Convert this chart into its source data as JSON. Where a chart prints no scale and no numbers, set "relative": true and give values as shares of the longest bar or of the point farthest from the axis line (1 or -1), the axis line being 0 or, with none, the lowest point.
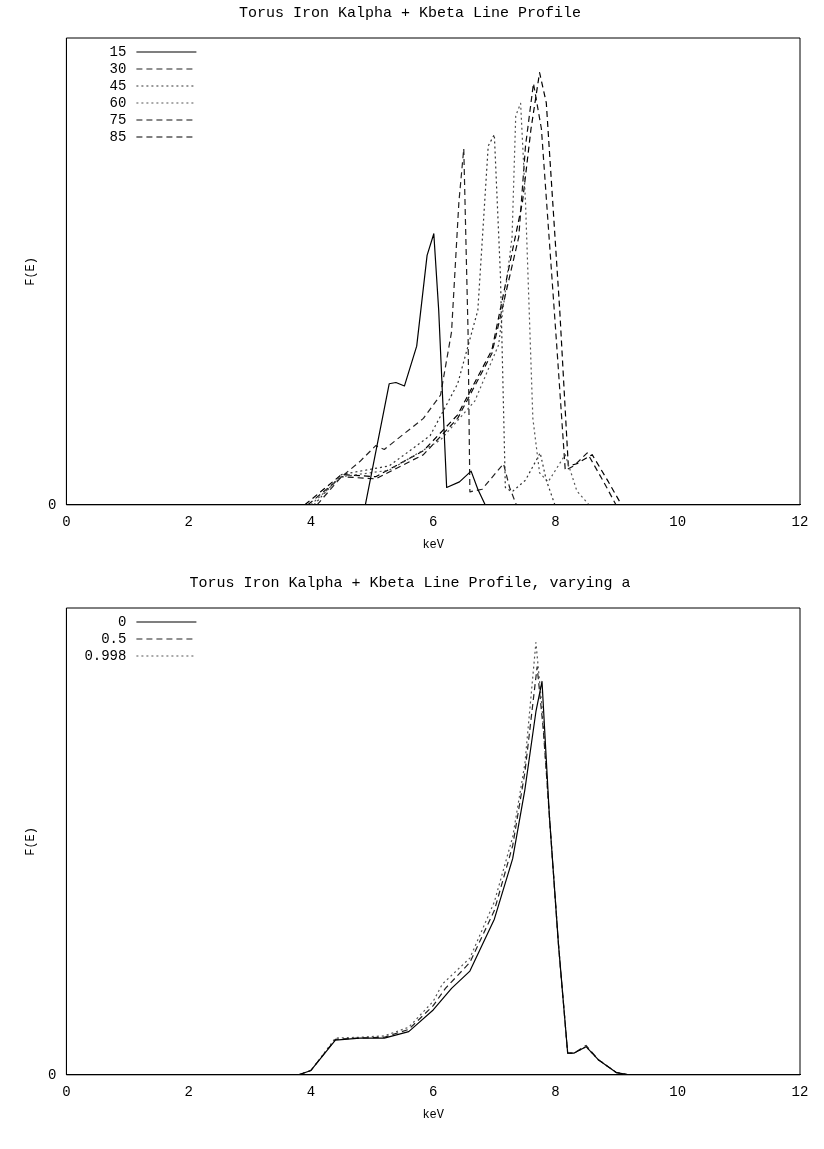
{
  "chart_data": [
    {
      "type": "line",
      "title": "Torus Iron Kalpha + Kbeta Line Profile",
      "xlabel": "keV",
      "ylabel": "F(E)",
      "relative": true,
      "xlim": [
        0,
        12
      ],
      "xticks": [
        0,
        2,
        4,
        6,
        8,
        10,
        12
      ],
      "legend": "top left",
      "annotations": [
        "0"
      ],
      "series": [
        {
          "name": "15",
          "color": "#000000",
          "line_style": "solid",
          "x": [
            4.89,
            5.28,
            5.39,
            5.53,
            5.73,
            5.9,
            6.01,
            6.09,
            6.22,
            6.43,
            6.62,
            6.73,
            6.85
          ],
          "values": [
            0,
            0.28,
            0.283,
            0.275,
            0.367,
            0.577,
            0.627,
            0.45,
            0.04,
            0.053,
            0.078,
            0.036,
            0
          ]
        },
        {
          "name": "30",
          "color": "#222222",
          "line_style": "dashed",
          "x": [
            4.1,
            4.5,
            4.8,
            5.06,
            5.2,
            5.84,
            6.12,
            6.3,
            6.42,
            6.5,
            6.57,
            6.6,
            6.8,
            7.15,
            7.25,
            7.36
          ],
          "values": [
            0,
            0.065,
            0.1,
            0.137,
            0.128,
            0.2,
            0.254,
            0.4,
            0.7,
            0.824,
            0.4,
            0.03,
            0.036,
            0.095,
            0.04,
            0
          ]
        },
        {
          "name": "45",
          "color": "#333333",
          "line_style": "dotted",
          "x": [
            4.05,
            4.5,
            5.28,
            5.95,
            6.4,
            6.73,
            6.9,
            7.0,
            7.1,
            7.18,
            7.29,
            7.51,
            7.75,
            7.85,
            7.99
          ],
          "values": [
            0,
            0.07,
            0.09,
            0.16,
            0.28,
            0.45,
            0.83,
            0.857,
            0.53,
            0.04,
            0.03,
            0.057,
            0.12,
            0.057,
            0
          ]
        },
        {
          "name": "60",
          "color": "#555555",
          "line_style": "dotted",
          "x": [
            4.0,
            4.5,
            5.28,
            6.12,
            6.68,
            7.07,
            7.29,
            7.35,
            7.43,
            7.51,
            7.63,
            7.74,
            7.88,
            8.16,
            8.35,
            8.55
          ],
          "values": [
            0,
            0.065,
            0.08,
            0.15,
            0.24,
            0.37,
            0.62,
            0.9,
            0.929,
            0.7,
            0.2,
            0.074,
            0.053,
            0.116,
            0.032,
            0
          ]
        },
        {
          "name": "75",
          "color": "#111111",
          "line_style": "dashed",
          "x": [
            3.95,
            4.5,
            5.06,
            5.84,
            6.4,
            6.96,
            7.4,
            7.51,
            7.64,
            7.77,
            8.02,
            8.16,
            8.3,
            8.52,
            8.8,
            8.99
          ],
          "values": [
            0,
            0.065,
            0.06,
            0.116,
            0.2,
            0.35,
            0.62,
            0.83,
            0.975,
            0.87,
            0.37,
            0.08,
            0.09,
            0.12,
            0.05,
            0
          ]
        },
        {
          "name": "85",
          "color": "#000000",
          "line_style": "dashed",
          "x": [
            3.9,
            4.5,
            5.06,
            5.84,
            6.4,
            6.96,
            7.46,
            7.6,
            7.74,
            7.85,
            8.07,
            8.21,
            8.35,
            8.6,
            8.85,
            9.08
          ],
          "values": [
            0,
            0.07,
            0.065,
            0.125,
            0.208,
            0.358,
            0.7,
            0.87,
            1.0,
            0.93,
            0.45,
            0.09,
            0.095,
            0.116,
            0.057,
            0
          ]
        }
      ]
    },
    {
      "type": "line",
      "title": "Torus Iron Kalpha + Kbeta Line Profile, varying a",
      "xlabel": "keV",
      "ylabel": "F(E)",
      "relative": true,
      "xlim": [
        0,
        12
      ],
      "xticks": [
        0,
        2,
        4,
        6,
        8,
        10,
        12
      ],
      "legend": "top left",
      "annotations": [
        "0"
      ],
      "series": [
        {
          "name": "0",
          "color": "#000000",
          "line_style": "solid",
          "x": [
            3.8,
            4.0,
            4.4,
            4.8,
            5.2,
            5.6,
            6.0,
            6.3,
            6.6,
            7.0,
            7.3,
            7.5,
            7.68,
            7.78,
            7.9,
            8.05,
            8.2,
            8.3,
            8.5,
            8.7,
            9.0,
            9.2
          ],
          "values": [
            0,
            0.01,
            0.08,
            0.085,
            0.085,
            0.1,
            0.15,
            0.2,
            0.24,
            0.36,
            0.5,
            0.66,
            0.84,
            0.91,
            0.6,
            0.3,
            0.05,
            0.05,
            0.065,
            0.035,
            0.005,
            0
          ]
        },
        {
          "name": "0.5",
          "color": "#222222",
          "line_style": "dashed",
          "x": [
            3.8,
            4.0,
            4.4,
            4.8,
            5.2,
            5.6,
            6.0,
            6.2,
            6.6,
            7.0,
            7.3,
            7.5,
            7.7,
            7.8,
            7.9,
            8.05,
            8.2,
            8.3,
            8.5,
            8.7,
            9.0,
            9.2
          ],
          "values": [
            0,
            0.01,
            0.082,
            0.085,
            0.087,
            0.105,
            0.16,
            0.2,
            0.26,
            0.38,
            0.53,
            0.7,
            0.944,
            0.8,
            0.6,
            0.3,
            0.05,
            0.05,
            0.068,
            0.035,
            0.005,
            0
          ]
        },
        {
          "name": "0.998",
          "color": "#555555",
          "line_style": "dotted",
          "x": [
            3.8,
            4.0,
            4.4,
            4.8,
            5.2,
            5.6,
            6.0,
            6.15,
            6.6,
            7.0,
            7.3,
            7.5,
            7.68,
            7.78,
            7.9,
            8.05,
            8.2,
            8.3,
            8.5,
            8.7,
            9.0,
            9.2
          ],
          "values": [
            0,
            0.01,
            0.085,
            0.087,
            0.09,
            0.11,
            0.17,
            0.21,
            0.27,
            0.4,
            0.55,
            0.72,
            1.0,
            0.85,
            0.6,
            0.3,
            0.05,
            0.05,
            0.065,
            0.035,
            0.005,
            0
          ]
        }
      ]
    }
  ]
}
